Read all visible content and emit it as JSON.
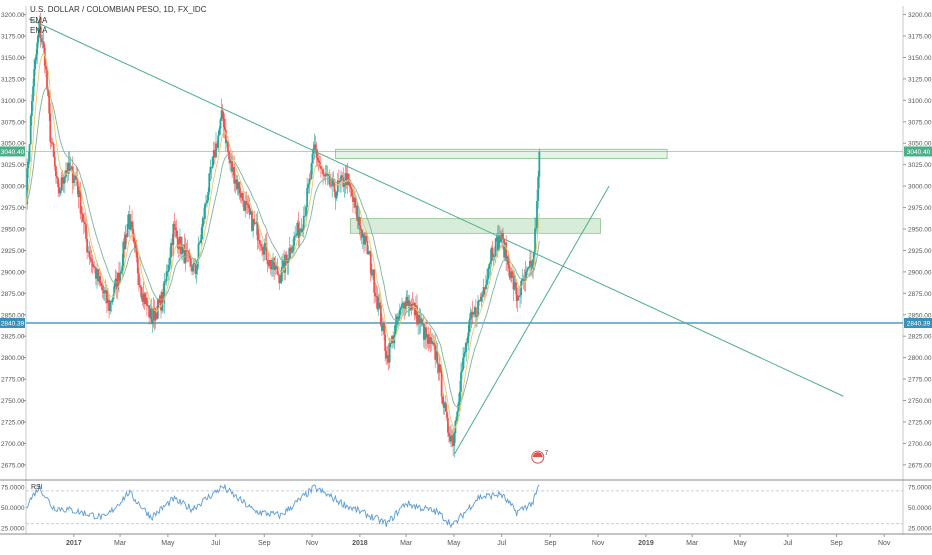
{
  "header": {
    "symbol_title": "U.S. DOLLAR / COLOMBIAN PESO, 1D, FX_IDC",
    "indicator_1": "EMA",
    "indicator_2": "EMA"
  },
  "rsi": {
    "label": "RSI"
  },
  "colors": {
    "up": "#26a69a",
    "down": "#ef5350",
    "trend": "#4caf8a",
    "support": "#4fa3c8",
    "ema_fast": "#e9c86a",
    "ema_slow": "#7fb3a0",
    "rsi_line": "#5b9bd5",
    "zone_fill": "#c8e6c9",
    "badge_upper": "#4caf8a",
    "badge_lower": "#3e8fb5"
  },
  "chart_data": [
    {
      "type": "candlestick",
      "title": "U.S. DOLLAR / COLOMBIAN PESO, 1D, FX_IDC",
      "y_axis": {
        "min": 2662,
        "max": 3210,
        "ticks": [
          "3200.00",
          "3175.00",
          "3150.00",
          "3125.00",
          "3100.00",
          "3075.00",
          "3050.00",
          "3025.00",
          "3000.00",
          "2975.00",
          "2950.00",
          "2925.00",
          "2900.00",
          "2875.00",
          "2850.00",
          "2825.00",
          "2800.00",
          "2775.00",
          "2750.00",
          "2725.00",
          "2700.00",
          "2675.00"
        ]
      },
      "x_axis": {
        "labels": [
          "2017",
          "Mar",
          "May",
          "Jul",
          "Sep",
          "Nov",
          "2018",
          "Mar",
          "May",
          "Jul",
          "Sep",
          "Nov",
          "2019",
          "Mar",
          "May",
          "Jul",
          "Sep",
          "Nov"
        ],
        "start": "2016-11-01",
        "end": "2019-11-25"
      },
      "anchor_points": [
        {
          "date": "2016-11-01",
          "close": 2990
        },
        {
          "date": "2016-11-10",
          "close": 3120
        },
        {
          "date": "2016-11-18",
          "close": 3185
        },
        {
          "date": "2016-11-25",
          "close": 3150
        },
        {
          "date": "2016-12-02",
          "close": 3060
        },
        {
          "date": "2016-12-12",
          "close": 2990
        },
        {
          "date": "2016-12-22",
          "close": 3020
        },
        {
          "date": "2017-01-04",
          "close": 3010
        },
        {
          "date": "2017-01-18",
          "close": 2930
        },
        {
          "date": "2017-02-01",
          "close": 2890
        },
        {
          "date": "2017-02-15",
          "close": 2860
        },
        {
          "date": "2017-03-01",
          "close": 2900
        },
        {
          "date": "2017-03-12",
          "close": 2965
        },
        {
          "date": "2017-03-28",
          "close": 2880
        },
        {
          "date": "2017-04-10",
          "close": 2845
        },
        {
          "date": "2017-04-25",
          "close": 2870
        },
        {
          "date": "2017-05-08",
          "close": 2950
        },
        {
          "date": "2017-05-22",
          "close": 2920
        },
        {
          "date": "2017-06-05",
          "close": 2900
        },
        {
          "date": "2017-06-20",
          "close": 2990
        },
        {
          "date": "2017-06-30",
          "close": 3040
        },
        {
          "date": "2017-07-10",
          "close": 3085
        },
        {
          "date": "2017-07-18",
          "close": 3030
        },
        {
          "date": "2017-07-30",
          "close": 3000
        },
        {
          "date": "2017-08-12",
          "close": 2965
        },
        {
          "date": "2017-08-25",
          "close": 2945
        },
        {
          "date": "2017-09-08",
          "close": 2910
        },
        {
          "date": "2017-09-22",
          "close": 2895
        },
        {
          "date": "2017-10-05",
          "close": 2930
        },
        {
          "date": "2017-10-20",
          "close": 2960
        },
        {
          "date": "2017-10-30",
          "close": 3010
        },
        {
          "date": "2017-11-04",
          "close": 3045
        },
        {
          "date": "2017-11-15",
          "close": 3010
        },
        {
          "date": "2017-12-01",
          "close": 2995
        },
        {
          "date": "2017-12-15",
          "close": 3010
        },
        {
          "date": "2017-12-30",
          "close": 2960
        },
        {
          "date": "2018-01-12",
          "close": 2920
        },
        {
          "date": "2018-01-25",
          "close": 2860
        },
        {
          "date": "2018-02-05",
          "close": 2800
        },
        {
          "date": "2018-02-14",
          "close": 2830
        },
        {
          "date": "2018-02-28",
          "close": 2870
        },
        {
          "date": "2018-03-12",
          "close": 2855
        },
        {
          "date": "2018-03-28",
          "close": 2820
        },
        {
          "date": "2018-04-10",
          "close": 2800
        },
        {
          "date": "2018-04-22",
          "close": 2720
        },
        {
          "date": "2018-04-30",
          "close": 2705
        },
        {
          "date": "2018-05-10",
          "close": 2780
        },
        {
          "date": "2018-05-22",
          "close": 2840
        },
        {
          "date": "2018-06-05",
          "close": 2870
        },
        {
          "date": "2018-06-18",
          "close": 2925
        },
        {
          "date": "2018-06-30",
          "close": 2940
        },
        {
          "date": "2018-07-08",
          "close": 2915
        },
        {
          "date": "2018-07-20",
          "close": 2870
        },
        {
          "date": "2018-08-02",
          "close": 2895
        },
        {
          "date": "2018-08-10",
          "close": 2910
        },
        {
          "date": "2018-08-15",
          "close": 2975
        },
        {
          "date": "2018-08-18",
          "close": 3040
        }
      ],
      "series": [
        {
          "name": "EMA",
          "kind": "fast"
        },
        {
          "name": "EMA",
          "kind": "slow"
        }
      ],
      "trendlines": [
        {
          "from": {
            "date": "2016-11-05",
            "price": 3195
          },
          "to": {
            "date": "2019-09-10",
            "price": 2755
          }
        },
        {
          "from": {
            "date": "2018-05-02",
            "price": 2688
          },
          "to": {
            "date": "2018-11-15",
            "price": 3000
          }
        }
      ],
      "zones": [
        {
          "from": "2017-12-01",
          "to": "2019-01-28",
          "low": 3032,
          "high": 3043
        },
        {
          "from": "2017-12-20",
          "to": "2018-11-04",
          "low": 2945,
          "high": 2962
        }
      ],
      "price_levels": [
        {
          "price": 3040.4,
          "label": "3040.40",
          "role": "upper"
        },
        {
          "price": 2840.39,
          "label": "2840.39",
          "role": "lower"
        }
      ],
      "event_marker": {
        "date": "2018-08-16",
        "price": 2684,
        "label": "7"
      }
    },
    {
      "type": "line",
      "title": "RSI",
      "y_axis": {
        "min": 20,
        "max": 82,
        "ticks": [
          "75.0000",
          "50.0000",
          "25.0000"
        ]
      },
      "levels": [
        70,
        30
      ],
      "anchor_points": [
        {
          "date": "2016-11-01",
          "value": 52
        },
        {
          "date": "2016-11-18",
          "value": 75
        },
        {
          "date": "2016-12-05",
          "value": 50
        },
        {
          "date": "2017-01-01",
          "value": 46
        },
        {
          "date": "2017-02-10",
          "value": 37
        },
        {
          "date": "2017-03-12",
          "value": 68
        },
        {
          "date": "2017-04-10",
          "value": 38
        },
        {
          "date": "2017-05-08",
          "value": 60
        },
        {
          "date": "2017-06-01",
          "value": 48
        },
        {
          "date": "2017-07-10",
          "value": 75
        },
        {
          "date": "2017-08-20",
          "value": 45
        },
        {
          "date": "2017-09-22",
          "value": 40
        },
        {
          "date": "2017-11-04",
          "value": 74
        },
        {
          "date": "2017-12-15",
          "value": 52
        },
        {
          "date": "2018-02-05",
          "value": 30
        },
        {
          "date": "2018-02-28",
          "value": 55
        },
        {
          "date": "2018-04-10",
          "value": 44
        },
        {
          "date": "2018-04-30",
          "value": 28
        },
        {
          "date": "2018-06-01",
          "value": 62
        },
        {
          "date": "2018-06-30",
          "value": 66
        },
        {
          "date": "2018-07-20",
          "value": 44
        },
        {
          "date": "2018-08-10",
          "value": 56
        },
        {
          "date": "2018-08-18",
          "value": 77
        }
      ]
    }
  ]
}
